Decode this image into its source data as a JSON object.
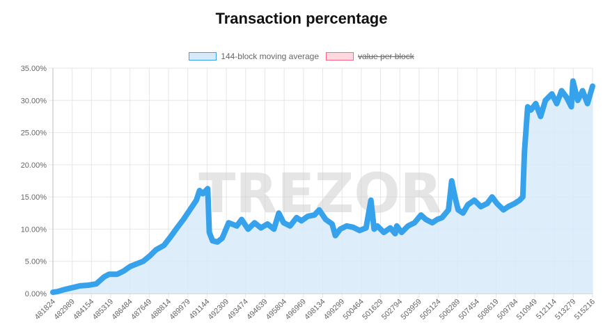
{
  "title": "Transaction percentage",
  "watermark": "TREZOR",
  "colors": {
    "line": "#36a2eb",
    "fill": "#d7eaf9",
    "legend2_fill": "#ffd8e0",
    "legend2_border": "#ff6384",
    "grid": "#e6e6e6"
  },
  "legend": [
    {
      "label": "144-block moving average",
      "hidden": false
    },
    {
      "label": "value per block",
      "hidden": true
    }
  ],
  "chart_data": {
    "type": "area",
    "title": "Transaction percentage",
    "ylim": [
      0,
      35
    ],
    "y_ticks": [
      "0.00%",
      "5.00%",
      "10.00%",
      "15.00%",
      "20.00%",
      "25.00%",
      "30.00%",
      "35.00%"
    ],
    "xlim": [
      481824,
      515216
    ],
    "x_tick_labels": [
      "481824",
      "482989",
      "484154",
      "485319",
      "486484",
      "487649",
      "488814",
      "489979",
      "491144",
      "492309",
      "493474",
      "494639",
      "495804",
      "496969",
      "498134",
      "499299",
      "500464",
      "501629",
      "502794",
      "503959",
      "505124",
      "506289",
      "507454",
      "508619",
      "509784",
      "510949",
      "512114",
      "513279",
      "515216"
    ],
    "series": [
      {
        "name": "144-block moving average",
        "x": [
          481824,
          482100,
          482500,
          483000,
          483500,
          484000,
          484500,
          485000,
          485300,
          485800,
          486200,
          486600,
          487000,
          487400,
          487800,
          488200,
          488700,
          489100,
          489500,
          489900,
          490300,
          490700,
          490900,
          491100,
          491400,
          491500,
          491700,
          492000,
          492300,
          492700,
          493200,
          493500,
          493900,
          494300,
          494700,
          495100,
          495500,
          495800,
          496100,
          496500,
          496900,
          497200,
          497600,
          498000,
          498300,
          498700,
          499100,
          499300,
          499600,
          500000,
          500400,
          500800,
          501200,
          501500,
          501700,
          501900,
          502300,
          502700,
          503000,
          503100,
          503400,
          503800,
          504200,
          504600,
          504900,
          505300,
          505600,
          505900,
          506300,
          506500,
          506700,
          506900,
          507200,
          507500,
          507900,
          508300,
          508700,
          509000,
          509300,
          509700,
          510000,
          510400,
          510700,
          510900,
          511000,
          511200,
          511400,
          511700,
          512000,
          512300,
          512700,
          513000,
          513300,
          513600,
          513900,
          514000,
          514300,
          514600,
          514900,
          515216
        ],
        "values": [
          0.2,
          0.3,
          0.6,
          0.9,
          1.2,
          1.3,
          1.5,
          2.6,
          3.0,
          3.0,
          3.5,
          4.2,
          4.6,
          5.0,
          5.8,
          6.8,
          7.5,
          8.8,
          10.2,
          11.5,
          13.0,
          14.5,
          16.0,
          15.5,
          16.3,
          9.5,
          8.2,
          8.0,
          8.6,
          11.0,
          10.5,
          11.5,
          10.0,
          11.0,
          10.2,
          10.8,
          10.0,
          12.5,
          11.0,
          10.5,
          11.8,
          11.3,
          12.0,
          12.2,
          13.0,
          11.5,
          10.8,
          9.0,
          10.0,
          10.5,
          10.3,
          9.8,
          10.2,
          14.5,
          10.0,
          10.5,
          9.5,
          10.2,
          9.3,
          10.5,
          9.5,
          10.5,
          11.0,
          12.2,
          11.5,
          11.0,
          11.5,
          11.8,
          13.0,
          17.5,
          15.0,
          13.0,
          12.5,
          13.8,
          14.5,
          13.5,
          14.0,
          15.0,
          14.0,
          13.0,
          13.5,
          14.0,
          14.5,
          15.0,
          22.0,
          29.0,
          28.5,
          29.5,
          27.5,
          30.0,
          31.0,
          29.5,
          31.5,
          30.5,
          29.0,
          33.0,
          30.0,
          31.5,
          29.5,
          32.2
        ]
      },
      {
        "name": "value per block",
        "hidden": true
      }
    ]
  }
}
